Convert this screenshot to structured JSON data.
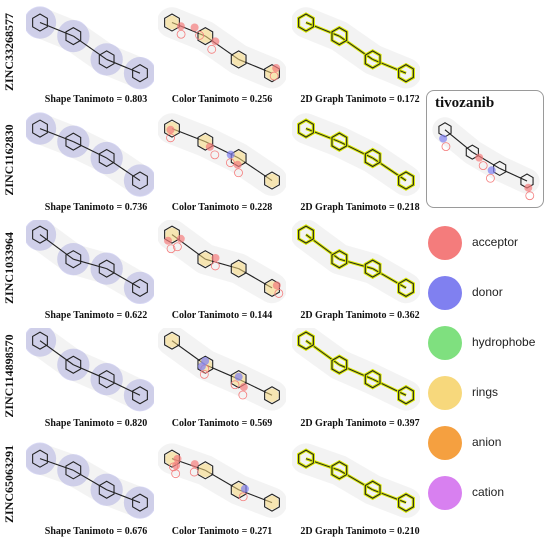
{
  "rows": [
    {
      "id": "ZINC33268577",
      "shape_label": "Shape Tanimoto = 0.803",
      "color_label": "Color Tanimoto = 0.256",
      "graph_label": "2D Graph Tanimoto = 0.172"
    },
    {
      "id": "ZINC1162830",
      "shape_label": "Shape Tanimoto = 0.736",
      "color_label": "Color Tanimoto = 0.228",
      "graph_label": "2D Graph Tanimoto = 0.218"
    },
    {
      "id": "ZINC1033964",
      "shape_label": "Shape Tanimoto = 0.622",
      "color_label": "Color Tanimoto = 0.144",
      "graph_label": "2D Graph Tanimoto = 0.362"
    },
    {
      "id": "ZINC114898570",
      "shape_label": "Shape Tanimoto = 0.820",
      "color_label": "Color Tanimoto = 0.569",
      "graph_label": "2D Graph Tanimoto = 0.397"
    },
    {
      "id": "ZINC65063291",
      "shape_label": "Shape Tanimoto = 0.676",
      "color_label": "Color Tanimoto = 0.271",
      "graph_label": "2D Graph Tanimoto = 0.210"
    }
  ],
  "reference": {
    "name": "tivozanib"
  },
  "legend": [
    {
      "label": "acceptor",
      "color": "#f47c7c"
    },
    {
      "label": "donor",
      "color": "#8080f0"
    },
    {
      "label": "hydrophobe",
      "color": "#7fe07f"
    },
    {
      "label": "rings",
      "color": "#f7d87c"
    },
    {
      "label": "anion",
      "color": "#f5a040"
    },
    {
      "label": "cation",
      "color": "#d880f0"
    }
  ]
}
